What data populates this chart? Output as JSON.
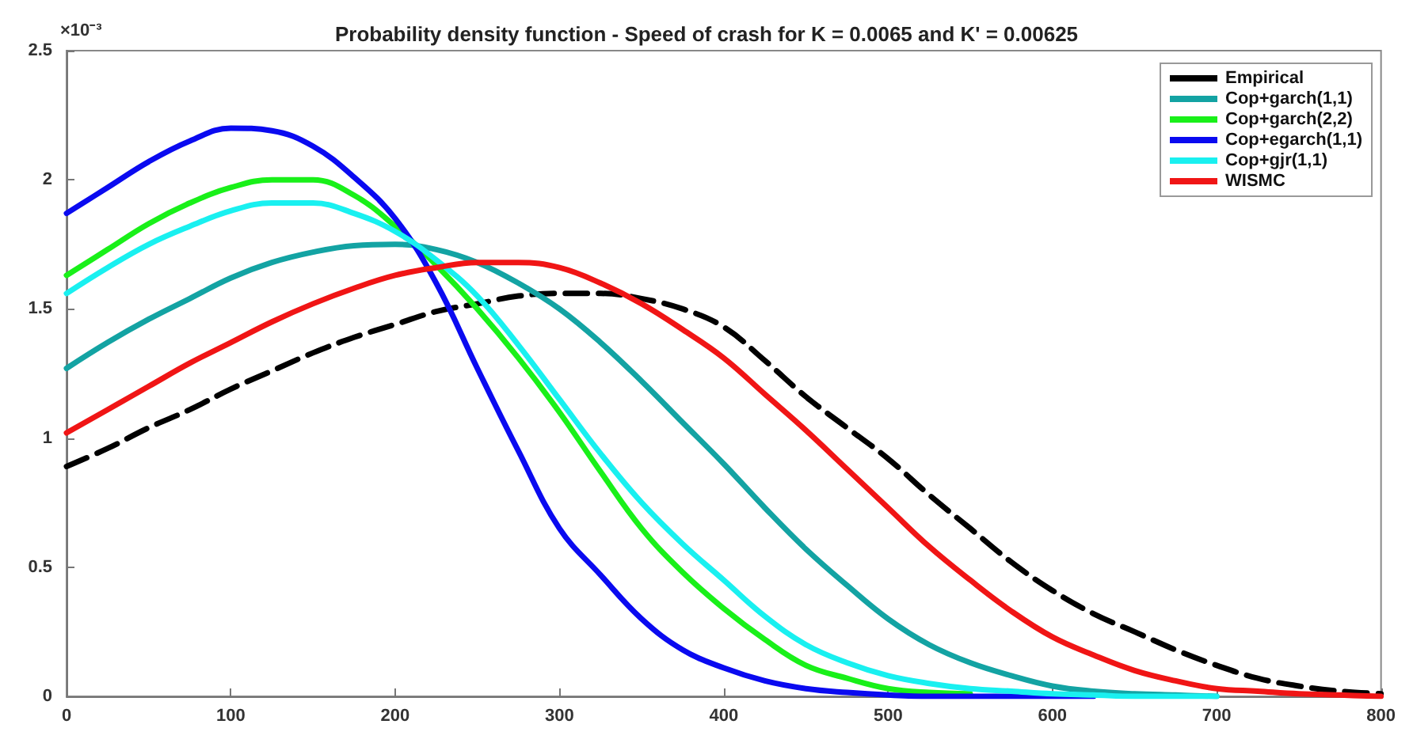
{
  "chart_data": {
    "type": "line",
    "title": "Probability density function - Speed of crash for K = 0.0065 and K' = 0.00625",
    "x": [
      0,
      25,
      50,
      75,
      100,
      125,
      150,
      175,
      200,
      225,
      250,
      275,
      300,
      325,
      350,
      375,
      400,
      425,
      450,
      475,
      500,
      525,
      550,
      575,
      600,
      625,
      650,
      675,
      700,
      725,
      750,
      775,
      800
    ],
    "series": [
      {
        "name": "Empirical",
        "color": "#000000",
        "line_style": "dashed",
        "values": [
          0.89,
          0.96,
          1.04,
          1.11,
          1.19,
          1.26,
          1.33,
          1.39,
          1.44,
          1.49,
          1.52,
          1.55,
          1.56,
          1.56,
          1.54,
          1.5,
          1.43,
          1.3,
          1.16,
          1.04,
          0.92,
          0.78,
          0.65,
          0.52,
          0.41,
          0.32,
          0.25,
          0.18,
          0.12,
          0.07,
          0.04,
          0.02,
          0.01
        ]
      },
      {
        "name": "Cop+garch(1,1)",
        "color": "#13a3a3",
        "values": [
          1.27,
          1.37,
          1.46,
          1.54,
          1.62,
          1.68,
          1.72,
          1.745,
          1.75,
          1.73,
          1.68,
          1.6,
          1.5,
          1.37,
          1.22,
          1.06,
          0.9,
          0.73,
          0.57,
          0.43,
          0.3,
          0.2,
          0.13,
          0.08,
          0.04,
          0.02,
          0.01,
          0.005,
          0,
          null,
          null,
          null,
          null
        ]
      },
      {
        "name": "Cop+garch(2,2)",
        "color": "#19f019",
        "values": [
          1.63,
          1.73,
          1.83,
          1.91,
          1.97,
          2.0,
          2.0,
          1.94,
          1.82,
          1.67,
          1.5,
          1.31,
          1.1,
          0.87,
          0.65,
          0.48,
          0.34,
          0.22,
          0.12,
          0.07,
          0.03,
          0.015,
          0.01,
          null,
          null,
          null,
          null,
          null,
          null,
          null,
          null,
          null,
          null
        ]
      },
      {
        "name": "Cop+egarch(1,1)",
        "color": "#0a0af0",
        "values": [
          1.87,
          1.97,
          2.07,
          2.15,
          2.2,
          2.19,
          2.13,
          2.01,
          1.85,
          1.6,
          1.27,
          0.95,
          0.65,
          0.47,
          0.3,
          0.18,
          0.11,
          0.06,
          0.03,
          0.015,
          0.005,
          0,
          0,
          0,
          0,
          0,
          null,
          null,
          null,
          null,
          null,
          null,
          null
        ]
      },
      {
        "name": "Cop+gjr(1,1)",
        "color": "#19f0f0",
        "values": [
          1.56,
          1.66,
          1.75,
          1.82,
          1.88,
          1.91,
          1.91,
          1.87,
          1.8,
          1.69,
          1.55,
          1.36,
          1.15,
          0.94,
          0.75,
          0.59,
          0.45,
          0.31,
          0.2,
          0.13,
          0.08,
          0.05,
          0.03,
          0.02,
          0.01,
          0.005,
          0,
          0,
          0,
          null,
          null,
          null,
          null
        ]
      },
      {
        "name": "WISMC",
        "color": "#f01515",
        "values": [
          1.02,
          1.11,
          1.2,
          1.29,
          1.37,
          1.45,
          1.52,
          1.58,
          1.63,
          1.66,
          1.68,
          1.68,
          1.66,
          1.6,
          1.52,
          1.42,
          1.31,
          1.17,
          1.03,
          0.88,
          0.73,
          0.58,
          0.45,
          0.33,
          0.23,
          0.16,
          0.1,
          0.06,
          0.03,
          0.02,
          0.01,
          0.005,
          0
        ]
      }
    ],
    "xlim": [
      0,
      800
    ],
    "xticks": [
      0,
      100,
      200,
      300,
      400,
      500,
      600,
      700,
      800
    ],
    "ylim": [
      0,
      2.5
    ],
    "yticks": [
      0,
      0.5,
      1,
      1.5,
      2,
      2.5
    ],
    "annotations": [
      "×10⁻³"
    ],
    "legend": "top right",
    "grid": false,
    "line_style": "solid",
    "marker": "none"
  }
}
